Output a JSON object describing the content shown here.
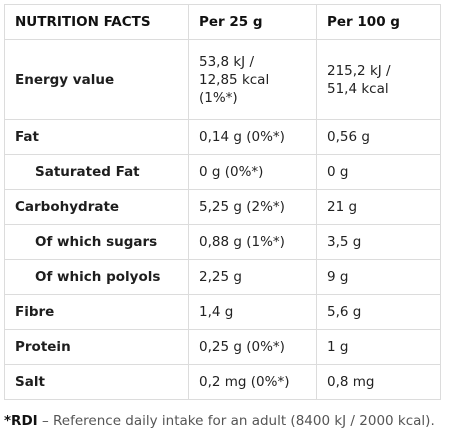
{
  "table": {
    "headers": [
      "NUTRITION FACTS",
      "Per 25 g",
      "Per 100 g"
    ],
    "rows": [
      {
        "label": "Energy value",
        "indent": false,
        "per25": [
          "53,8 kJ /",
          "12,85 kcal",
          "(1%*)"
        ],
        "per100": [
          "215,2 kJ /",
          "51,4 kcal"
        ]
      },
      {
        "label": "Fat",
        "indent": false,
        "per25": [
          "0,14 g (0%*)"
        ],
        "per100": [
          "0,56 g"
        ]
      },
      {
        "label": "Saturated Fat",
        "indent": true,
        "per25": [
          "0 g (0%*)"
        ],
        "per100": [
          "0 g"
        ]
      },
      {
        "label": "Carbohydrate",
        "indent": false,
        "per25": [
          "5,25 g (2%*)"
        ],
        "per100": [
          "21 g"
        ]
      },
      {
        "label": "Of which sugars",
        "indent": true,
        "per25": [
          "0,88 g (1%*)"
        ],
        "per100": [
          "3,5 g"
        ]
      },
      {
        "label": "Of which polyols",
        "indent": true,
        "per25": [
          "2,25 g"
        ],
        "per100": [
          "9 g"
        ]
      },
      {
        "label": "Fibre",
        "indent": false,
        "per25": [
          "1,4 g"
        ],
        "per100": [
          "5,6 g"
        ]
      },
      {
        "label": "Protein",
        "indent": false,
        "per25": [
          "0,25 g (0%*)"
        ],
        "per100": [
          "1 g"
        ]
      },
      {
        "label": "Salt",
        "indent": false,
        "per25": [
          "0,2 mg (0%*)"
        ],
        "per100": [
          "0,8 mg"
        ]
      }
    ]
  },
  "footnote": {
    "label": "*RDI",
    "text": " – Reference daily intake for an adult (8400 kJ / 2000 kcal)."
  }
}
